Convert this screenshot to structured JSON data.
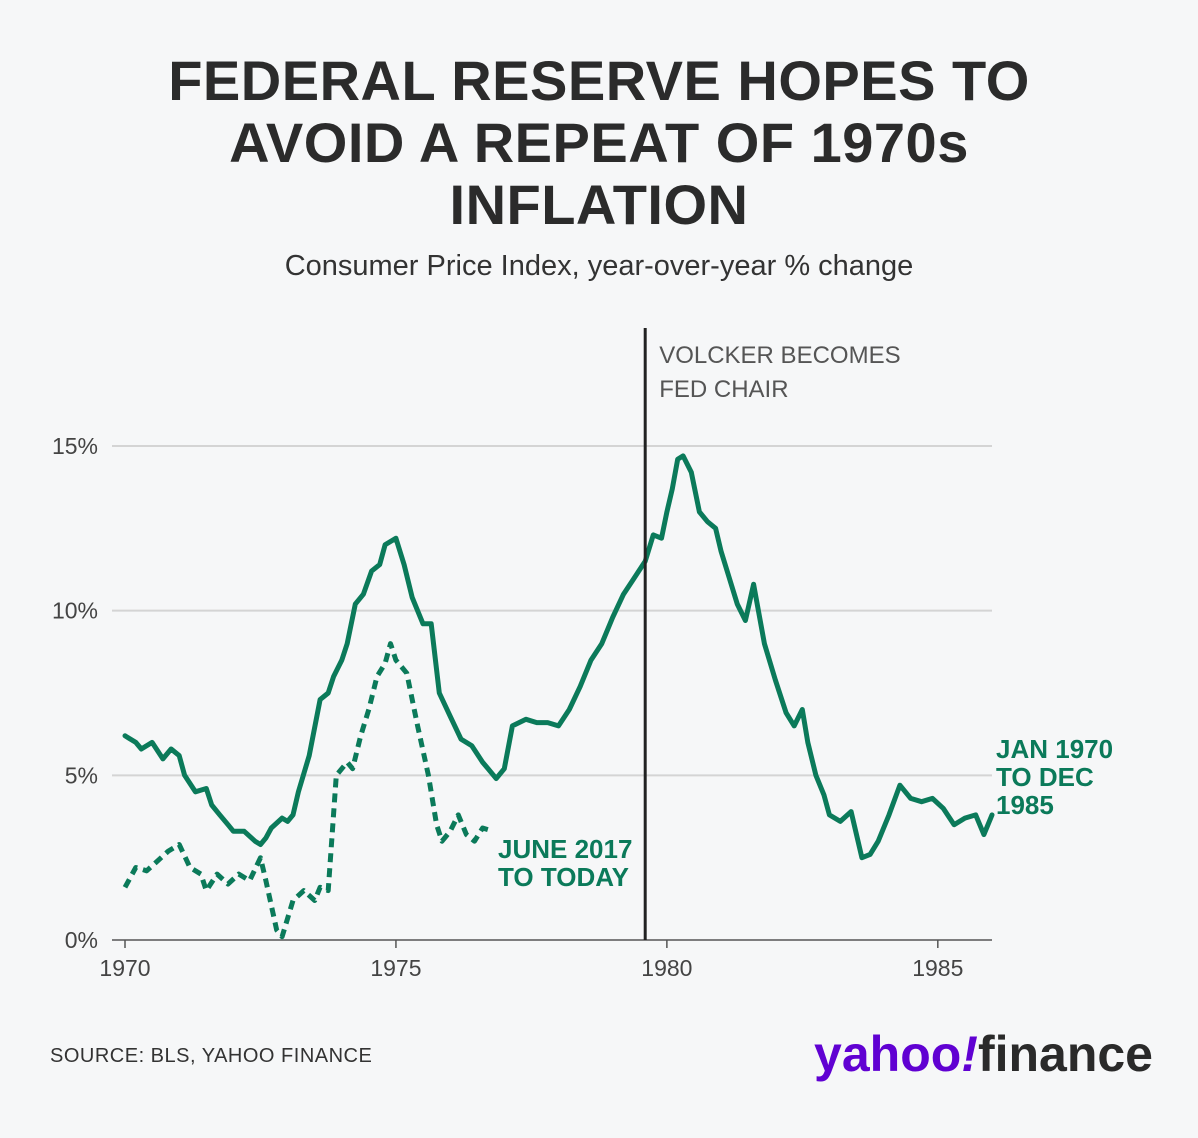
{
  "title_lines": [
    "FEDERAL RESERVE HOPES TO",
    "AVOID A REPEAT OF 1970s",
    "INFLATION"
  ],
  "subtitle": "Consumer Price Index, year-over-year % change",
  "source": "SOURCE: BLS, YAHOO FINANCE",
  "logo": {
    "yahoo": "yahoo",
    "bang": "!",
    "finance": "finance",
    "brand_color": "#6001d2"
  },
  "chart_data": {
    "type": "line",
    "title": "FEDERAL RESERVE HOPES TO AVOID A REPEAT OF 1970s INFLATION",
    "subtitle": "Consumer Price Index, year-over-year % change",
    "xlabel": "",
    "ylabel": "",
    "xlim": [
      1970,
      1986
    ],
    "ylim": [
      0,
      15
    ],
    "x_ticks": [
      1970,
      1975,
      1980,
      1985
    ],
    "y_ticks": [
      0,
      5,
      10,
      15
    ],
    "y_tick_labels": [
      "0%",
      "5%",
      "10%",
      "15%"
    ],
    "grid": "horizontal",
    "annotation": {
      "x": 1979.6,
      "text": [
        "VOLCKER BECOMES",
        "FED CHAIR"
      ]
    },
    "series": [
      {
        "name": "JAN 1970 TO DEC 1985",
        "label_lines": [
          "JAN 1970",
          "TO DEC",
          "1985"
        ],
        "color": "#0b7a5a",
        "style": "solid",
        "x": [
          1970.0,
          1970.2,
          1970.3,
          1970.5,
          1970.7,
          1970.85,
          1971.0,
          1971.1,
          1971.3,
          1971.5,
          1971.6,
          1971.75,
          1971.9,
          1972.0,
          1972.2,
          1972.4,
          1972.5,
          1972.6,
          1972.7,
          1972.9,
          1973.0,
          1973.1,
          1973.2,
          1973.4,
          1973.6,
          1973.75,
          1973.85,
          1974.0,
          1974.1,
          1974.25,
          1974.4,
          1974.55,
          1974.7,
          1974.8,
          1974.9,
          1975.0,
          1975.15,
          1975.3,
          1975.5,
          1975.65,
          1975.8,
          1976.0,
          1976.2,
          1976.4,
          1976.6,
          1976.7,
          1976.85,
          1977.0,
          1977.15,
          1977.4,
          1977.6,
          1977.8,
          1978.0,
          1978.2,
          1978.4,
          1978.6,
          1978.8,
          1979.0,
          1979.2,
          1979.4,
          1979.6,
          1979.75,
          1979.9,
          1980.0,
          1980.1,
          1980.2,
          1980.3,
          1980.45,
          1980.6,
          1980.75,
          1980.9,
          1981.0,
          1981.15,
          1981.3,
          1981.45,
          1981.6,
          1981.8,
          1982.0,
          1982.2,
          1982.35,
          1982.5,
          1982.6,
          1982.75,
          1982.9,
          1983.0,
          1983.2,
          1983.4,
          1983.6,
          1983.75,
          1983.9,
          1984.1,
          1984.3,
          1984.5,
          1984.7,
          1984.9,
          1985.1,
          1985.3,
          1985.5,
          1985.7,
          1985.85,
          1986.0
        ],
        "y": [
          6.2,
          6.0,
          5.8,
          6.0,
          5.5,
          5.8,
          5.6,
          5.0,
          4.5,
          4.6,
          4.1,
          3.8,
          3.5,
          3.3,
          3.3,
          3.0,
          2.9,
          3.1,
          3.4,
          3.7,
          3.6,
          3.8,
          4.5,
          5.6,
          7.3,
          7.5,
          8.0,
          8.5,
          9.0,
          10.2,
          10.5,
          11.2,
          11.4,
          12.0,
          12.1,
          12.2,
          11.4,
          10.4,
          9.6,
          9.6,
          7.5,
          6.8,
          6.1,
          5.9,
          5.4,
          5.2,
          4.9,
          5.2,
          6.5,
          6.7,
          6.6,
          6.6,
          6.5,
          7.0,
          7.7,
          8.5,
          9.0,
          9.8,
          10.5,
          11.0,
          11.5,
          12.3,
          12.2,
          13.0,
          13.7,
          14.6,
          14.7,
          14.2,
          13.0,
          12.7,
          12.5,
          11.8,
          11.0,
          10.2,
          9.7,
          10.8,
          9.0,
          7.9,
          6.9,
          6.5,
          7.0,
          6.0,
          5.0,
          4.4,
          3.8,
          3.6,
          3.9,
          2.5,
          2.6,
          3.0,
          3.8,
          4.7,
          4.3,
          4.2,
          4.3,
          4.0,
          3.5,
          3.7,
          3.8,
          3.2,
          3.8
        ]
      },
      {
        "name": "JUNE 2017 TO TODAY",
        "label_lines": [
          "JUNE 2017",
          "TO TODAY"
        ],
        "color": "#0b7a5a",
        "style": "dashed",
        "x": [
          1970.0,
          1970.2,
          1970.4,
          1970.6,
          1970.8,
          1971.0,
          1971.2,
          1971.4,
          1971.5,
          1971.7,
          1971.9,
          1972.1,
          1972.3,
          1972.5,
          1972.6,
          1972.8,
          1972.9,
          1973.1,
          1973.3,
          1973.5,
          1973.6,
          1973.75,
          1973.9,
          1974.1,
          1974.2,
          1974.35,
          1974.5,
          1974.65,
          1974.8,
          1974.9,
          1975.0,
          1975.2,
          1975.4,
          1975.6,
          1975.75,
          1975.85,
          1976.0,
          1976.15,
          1976.3,
          1976.45,
          1976.6,
          1976.8
        ],
        "y": [
          1.6,
          2.2,
          2.1,
          2.4,
          2.7,
          2.9,
          2.2,
          2.0,
          1.5,
          2.0,
          1.7,
          2.0,
          1.8,
          2.5,
          1.8,
          0.3,
          0.1,
          1.2,
          1.5,
          1.2,
          1.6,
          1.5,
          5.0,
          5.4,
          5.2,
          6.2,
          7.0,
          8.0,
          8.4,
          9.0,
          8.5,
          8.1,
          6.5,
          5.0,
          3.5,
          3.0,
          3.3,
          3.8,
          3.2,
          3.0,
          3.4,
          3.3
        ]
      }
    ]
  }
}
